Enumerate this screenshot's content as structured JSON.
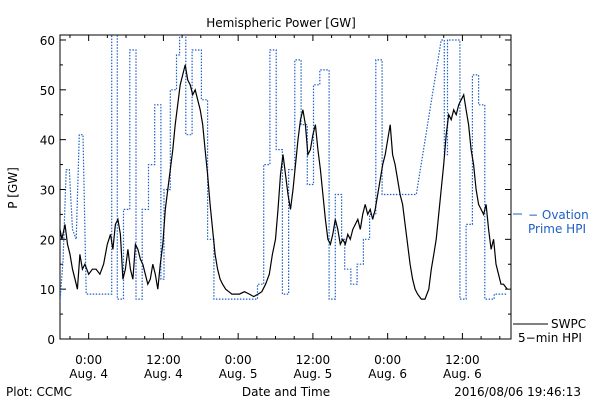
{
  "chart_data": {
    "type": "line",
    "title": "Hemispheric Power [GW]",
    "ylabel": "P [GW]",
    "xlabel": "Date and Time",
    "ylim": [
      0,
      61
    ],
    "yticks": [
      0,
      10,
      20,
      30,
      40,
      50,
      60
    ],
    "xlim": [
      -4.6,
      67.8
    ],
    "xticks": [
      {
        "x": 0,
        "top": "0:00",
        "bottom": "Aug. 4"
      },
      {
        "x": 12,
        "top": "12:00",
        "bottom": "Aug. 4"
      },
      {
        "x": 24,
        "top": "0:00",
        "bottom": "Aug. 5"
      },
      {
        "x": 36,
        "top": "12:00",
        "bottom": "Aug. 5"
      },
      {
        "x": 48,
        "top": "0:00",
        "bottom": "Aug. 6"
      },
      {
        "x": 60,
        "top": "12:00",
        "bottom": "Aug. 6"
      }
    ],
    "footer_left": "Plot: CCMC",
    "footer_right": "2016/08/06 19:46:13",
    "series": [
      {
        "name": "SWPC 5-min HPI",
        "legend_line1": "SWPC",
        "legend_line2": "5−min HPI",
        "color": "#000000",
        "style": "solid",
        "points": [
          [
            -4.6,
            22
          ],
          [
            -4.3,
            20
          ],
          [
            -3.8,
            23
          ],
          [
            -3.4,
            19
          ],
          [
            -3,
            17
          ],
          [
            -2.6,
            14
          ],
          [
            -2.2,
            12
          ],
          [
            -1.8,
            10
          ],
          [
            -1.4,
            17
          ],
          [
            -1,
            14
          ],
          [
            -0.6,
            15
          ],
          [
            0,
            13
          ],
          [
            0.6,
            14
          ],
          [
            1.2,
            14
          ],
          [
            1.8,
            13
          ],
          [
            2.4,
            15
          ],
          [
            3,
            19
          ],
          [
            3.5,
            21
          ],
          [
            3.9,
            18
          ],
          [
            4.3,
            23
          ],
          [
            4.7,
            24
          ],
          [
            5.1,
            21
          ],
          [
            5.5,
            12
          ],
          [
            5.9,
            14
          ],
          [
            6.3,
            18
          ],
          [
            6.7,
            14
          ],
          [
            7.1,
            12
          ],
          [
            7.5,
            19
          ],
          [
            7.9,
            18
          ],
          [
            8.3,
            16
          ],
          [
            8.7,
            15
          ],
          [
            9.1,
            13
          ],
          [
            9.5,
            11
          ],
          [
            9.9,
            12
          ],
          [
            10.3,
            15
          ],
          [
            10.7,
            13
          ],
          [
            11.1,
            10
          ],
          [
            11.5,
            15
          ],
          [
            11.9,
            19
          ],
          [
            12.3,
            26
          ],
          [
            12.7,
            30
          ],
          [
            13.1,
            34
          ],
          [
            13.5,
            38
          ],
          [
            13.9,
            43
          ],
          [
            14.3,
            47
          ],
          [
            14.7,
            51
          ],
          [
            15.1,
            53
          ],
          [
            15.5,
            55
          ],
          [
            15.9,
            52
          ],
          [
            16.3,
            51
          ],
          [
            16.7,
            49
          ],
          [
            17.1,
            50
          ],
          [
            17.5,
            48
          ],
          [
            17.9,
            46
          ],
          [
            18.3,
            43
          ],
          [
            18.7,
            38
          ],
          [
            19.1,
            33
          ],
          [
            19.5,
            27
          ],
          [
            19.9,
            22
          ],
          [
            20.3,
            17
          ],
          [
            20.7,
            14
          ],
          [
            21.1,
            12
          ],
          [
            21.5,
            11
          ],
          [
            22,
            10
          ],
          [
            22.5,
            9.5
          ],
          [
            23,
            9
          ],
          [
            23.5,
            9
          ],
          [
            24.2,
            9
          ],
          [
            25,
            9.5
          ],
          [
            25.8,
            9
          ],
          [
            26.5,
            8.5
          ],
          [
            27.2,
            9
          ],
          [
            27.8,
            9.5
          ],
          [
            28.4,
            11
          ],
          [
            29,
            13
          ],
          [
            29.5,
            17
          ],
          [
            30,
            20
          ],
          [
            30.4,
            26
          ],
          [
            30.8,
            33
          ],
          [
            31.2,
            37
          ],
          [
            31.6,
            33
          ],
          [
            32,
            29
          ],
          [
            32.4,
            26
          ],
          [
            32.8,
            30
          ],
          [
            33.2,
            35
          ],
          [
            33.6,
            40
          ],
          [
            34,
            44
          ],
          [
            34.4,
            46
          ],
          [
            34.8,
            43
          ],
          [
            35.2,
            37
          ],
          [
            35.6,
            38
          ],
          [
            36,
            41
          ],
          [
            36.4,
            43
          ],
          [
            36.8,
            38
          ],
          [
            37.2,
            34
          ],
          [
            37.6,
            29
          ],
          [
            38,
            24
          ],
          [
            38.4,
            20
          ],
          [
            38.8,
            19
          ],
          [
            39.2,
            21
          ],
          [
            39.6,
            24
          ],
          [
            40,
            22
          ],
          [
            40.4,
            19
          ],
          [
            40.8,
            20
          ],
          [
            41.2,
            19
          ],
          [
            41.6,
            21
          ],
          [
            42,
            20
          ],
          [
            42.4,
            22
          ],
          [
            42.8,
            23
          ],
          [
            43.2,
            24
          ],
          [
            43.6,
            22
          ],
          [
            44,
            25
          ],
          [
            44.4,
            27
          ],
          [
            44.8,
            25
          ],
          [
            45.2,
            26
          ],
          [
            45.6,
            24
          ],
          [
            46,
            26
          ],
          [
            46.4,
            29
          ],
          [
            46.8,
            32
          ],
          [
            47.2,
            35
          ],
          [
            47.6,
            37
          ],
          [
            48,
            40
          ],
          [
            48.4,
            43
          ],
          [
            48.8,
            37
          ],
          [
            49.2,
            35
          ],
          [
            49.6,
            32
          ],
          [
            50,
            29
          ],
          [
            50.4,
            27
          ],
          [
            50.8,
            23
          ],
          [
            51.2,
            19
          ],
          [
            51.6,
            15
          ],
          [
            52,
            12
          ],
          [
            52.4,
            10
          ],
          [
            52.8,
            9
          ],
          [
            53.4,
            8
          ],
          [
            54,
            8
          ],
          [
            54.6,
            10
          ],
          [
            55,
            14
          ],
          [
            55.4,
            17
          ],
          [
            55.8,
            20
          ],
          [
            56.2,
            25
          ],
          [
            56.6,
            30
          ],
          [
            57,
            35
          ],
          [
            57.4,
            41
          ],
          [
            57.8,
            45
          ],
          [
            58.2,
            44
          ],
          [
            58.6,
            46
          ],
          [
            59,
            45
          ],
          [
            59.4,
            47
          ],
          [
            59.8,
            48
          ],
          [
            60.2,
            49
          ],
          [
            60.6,
            46
          ],
          [
            61,
            43
          ],
          [
            61.4,
            38
          ],
          [
            61.8,
            35
          ],
          [
            62.2,
            30
          ],
          [
            62.6,
            27
          ],
          [
            63,
            26
          ],
          [
            63.4,
            25
          ],
          [
            63.8,
            27
          ],
          [
            64.2,
            22
          ],
          [
            64.6,
            18
          ],
          [
            65,
            20
          ],
          [
            65.4,
            15
          ],
          [
            65.8,
            13
          ],
          [
            66.2,
            11
          ],
          [
            66.6,
            11
          ],
          [
            67.2,
            10
          ]
        ]
      },
      {
        "name": "Ovation Prime HPI",
        "legend_line1": "− Ovation",
        "legend_line2": "Prime HPI",
        "color": "#1f5fc8",
        "style": "dotted-step",
        "points": [
          [
            -4.6,
            7.5
          ],
          [
            -4.1,
            16
          ],
          [
            -3.6,
            34
          ],
          [
            -3.1,
            34
          ],
          [
            -2.6,
            22
          ],
          [
            -2.0,
            20
          ],
          [
            -1.5,
            41
          ],
          [
            -0.9,
            41
          ],
          [
            -0.4,
            9
          ],
          [
            3.7,
            9
          ],
          [
            3.7,
            62
          ],
          [
            4.6,
            62
          ],
          [
            4.6,
            8
          ],
          [
            5.6,
            8
          ],
          [
            5.6,
            26
          ],
          [
            6.6,
            26
          ],
          [
            6.6,
            58
          ],
          [
            7.6,
            58
          ],
          [
            7.6,
            8
          ],
          [
            8.6,
            8
          ],
          [
            8.6,
            26
          ],
          [
            9.6,
            26
          ],
          [
            9.6,
            35
          ],
          [
            10.6,
            35
          ],
          [
            10.6,
            47
          ],
          [
            11.6,
            47
          ],
          [
            11.6,
            12
          ],
          [
            12.1,
            12
          ],
          [
            12.1,
            30
          ],
          [
            13.1,
            30
          ],
          [
            13.1,
            50
          ],
          [
            14.1,
            50
          ],
          [
            14.1,
            57
          ],
          [
            14.6,
            57
          ],
          [
            14.6,
            62
          ],
          [
            15.6,
            62
          ],
          [
            15.6,
            41
          ],
          [
            16.6,
            41
          ],
          [
            16.6,
            58
          ],
          [
            18.1,
            58
          ],
          [
            18.1,
            48
          ],
          [
            19.1,
            48
          ],
          [
            19.1,
            20
          ],
          [
            20.1,
            20
          ],
          [
            20.1,
            8
          ],
          [
            27.1,
            8
          ],
          [
            27.1,
            11
          ],
          [
            28.1,
            11
          ],
          [
            28.1,
            35
          ],
          [
            29.1,
            35
          ],
          [
            29.1,
            58
          ],
          [
            30.1,
            58
          ],
          [
            30.1,
            38
          ],
          [
            31.1,
            38
          ],
          [
            31.1,
            9
          ],
          [
            32.1,
            9
          ],
          [
            32.1,
            34
          ],
          [
            33.1,
            34
          ],
          [
            33.1,
            56
          ],
          [
            34.1,
            56
          ],
          [
            34.1,
            43
          ],
          [
            35.1,
            43
          ],
          [
            35.1,
            31
          ],
          [
            36.1,
            31
          ],
          [
            36.1,
            51
          ],
          [
            37.1,
            51
          ],
          [
            37.1,
            54
          ],
          [
            38.1,
            54
          ],
          [
            38.1,
            54
          ],
          [
            38.6,
            54
          ],
          [
            38.6,
            8
          ],
          [
            39.6,
            8
          ],
          [
            39.6,
            29
          ],
          [
            40.6,
            29
          ],
          [
            40.6,
            20
          ],
          [
            41.1,
            20
          ],
          [
            41.1,
            14
          ],
          [
            42.1,
            14
          ],
          [
            42.1,
            11
          ],
          [
            43.1,
            11
          ],
          [
            43.1,
            15
          ],
          [
            44.1,
            15
          ],
          [
            44.1,
            20
          ],
          [
            45.1,
            20
          ],
          [
            45.1,
            25
          ],
          [
            46.1,
            25
          ],
          [
            46.1,
            56
          ],
          [
            47.1,
            56
          ],
          [
            47.1,
            29
          ],
          [
            48,
            29
          ],
          [
            48,
            29
          ],
          [
            48.6,
            29
          ],
          [
            48.6,
            29
          ],
          [
            49.6,
            29
          ],
          [
            49.6,
            29
          ],
          [
            50.2,
            29
          ],
          [
            50.2,
            29
          ],
          [
            51.8,
            29
          ],
          [
            51.8,
            29
          ],
          [
            52.6,
            29
          ],
          [
            56.6,
            60
          ],
          [
            57.1,
            60
          ],
          [
            57.1,
            37
          ],
          [
            57.6,
            37
          ],
          [
            57.6,
            60
          ],
          [
            59.6,
            60
          ],
          [
            59.6,
            8
          ],
          [
            60.6,
            8
          ],
          [
            60.6,
            23
          ],
          [
            61.6,
            23
          ],
          [
            61.6,
            53
          ],
          [
            62.6,
            53
          ],
          [
            62.6,
            47
          ],
          [
            63.6,
            47
          ],
          [
            63.6,
            8
          ],
          [
            65.1,
            8
          ],
          [
            65.1,
            9
          ],
          [
            67.2,
            9
          ]
        ]
      }
    ]
  }
}
